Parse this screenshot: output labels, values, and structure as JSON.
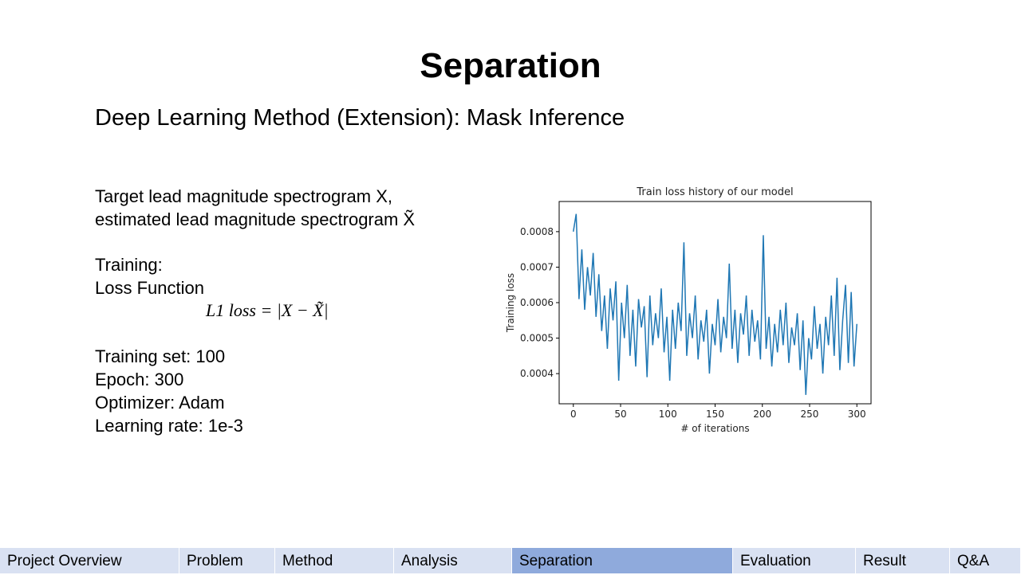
{
  "slide": {
    "title": "Separation",
    "subtitle": "Deep Learning Method (Extension): Mask Inference",
    "lines": [
      "Target lead magnitude spectrogram X,",
      "estimated lead magnitude spectrogram X̃",
      "Training:",
      "Loss Function"
    ],
    "formula": "L1 loss = |X − X̃|",
    "settings": [
      "Training set: 100",
      "Epoch: 300",
      "Optimizer: Adam",
      "Learning rate:  1e-3"
    ]
  },
  "nav": {
    "items": [
      {
        "label": "Project Overview"
      },
      {
        "label": "Problem"
      },
      {
        "label": "Method"
      },
      {
        "label": "Analysis"
      },
      {
        "label": "Separation",
        "selected": true
      },
      {
        "label": "Evaluation"
      },
      {
        "label": "Result"
      },
      {
        "label": "Q&A"
      }
    ]
  },
  "chart_data": {
    "type": "line",
    "title": "Train loss history of our model",
    "x_label": "# of iterations",
    "y_label": "Training loss",
    "x": [
      0,
      3,
      6,
      9,
      12,
      15,
      18,
      21,
      24,
      27,
      30,
      33,
      36,
      39,
      42,
      45,
      48,
      51,
      54,
      57,
      60,
      63,
      66,
      69,
      72,
      75,
      78,
      81,
      84,
      87,
      90,
      93,
      96,
      99,
      102,
      105,
      108,
      111,
      114,
      117,
      120,
      123,
      126,
      129,
      132,
      135,
      138,
      141,
      144,
      147,
      150,
      153,
      156,
      159,
      162,
      165,
      168,
      171,
      174,
      177,
      180,
      183,
      186,
      189,
      192,
      195,
      198,
      201,
      204,
      207,
      210,
      213,
      216,
      219,
      222,
      225,
      228,
      231,
      234,
      237,
      240,
      243,
      246,
      249,
      252,
      255,
      258,
      261,
      264,
      267,
      270,
      273,
      276,
      279,
      282,
      285,
      288,
      291,
      294,
      297,
      300
    ],
    "series": [
      {
        "color": "#1f77b4",
        "values": [
          0.0008,
          0.00085,
          0.00061,
          0.00075,
          0.00058,
          0.0007,
          0.00062,
          0.00074,
          0.00056,
          0.00068,
          0.00052,
          0.00062,
          0.00047,
          0.00064,
          0.00055,
          0.00066,
          0.00038,
          0.0006,
          0.0005,
          0.00065,
          0.00045,
          0.00058,
          0.00042,
          0.00061,
          0.00053,
          0.00059,
          0.00039,
          0.00062,
          0.00048,
          0.00057,
          0.0005,
          0.00064,
          0.00046,
          0.00056,
          0.00038,
          0.00058,
          0.00047,
          0.0006,
          0.00052,
          0.00077,
          0.00045,
          0.00057,
          0.0005,
          0.00062,
          0.00044,
          0.00055,
          0.00049,
          0.00058,
          0.0004,
          0.00054,
          0.00048,
          0.00061,
          0.00046,
          0.00056,
          0.0005,
          0.00071,
          0.00047,
          0.00058,
          0.00043,
          0.00057,
          0.00051,
          0.00062,
          0.00045,
          0.00058,
          0.00049,
          0.00055,
          0.00044,
          0.00079,
          0.00047,
          0.00056,
          0.00042,
          0.00054,
          0.00046,
          0.00058,
          0.00048,
          0.0006,
          0.00043,
          0.00053,
          0.00048,
          0.00057,
          0.00041,
          0.00055,
          0.00034,
          0.0005,
          0.00044,
          0.00059,
          0.00047,
          0.00054,
          0.0004,
          0.00056,
          0.00048,
          0.00062,
          0.00045,
          0.00067,
          0.00041,
          0.00055,
          0.00065,
          0.00043,
          0.00063,
          0.00042,
          0.00054
        ]
      }
    ],
    "xlim": [
      -15,
      315
    ],
    "ylim": [
      0.000315,
      0.000885
    ],
    "xticks": [
      0,
      50,
      100,
      150,
      200,
      250,
      300
    ],
    "yticks": [
      0.0004,
      0.0005,
      0.0006,
      0.0007,
      0.0008
    ]
  }
}
